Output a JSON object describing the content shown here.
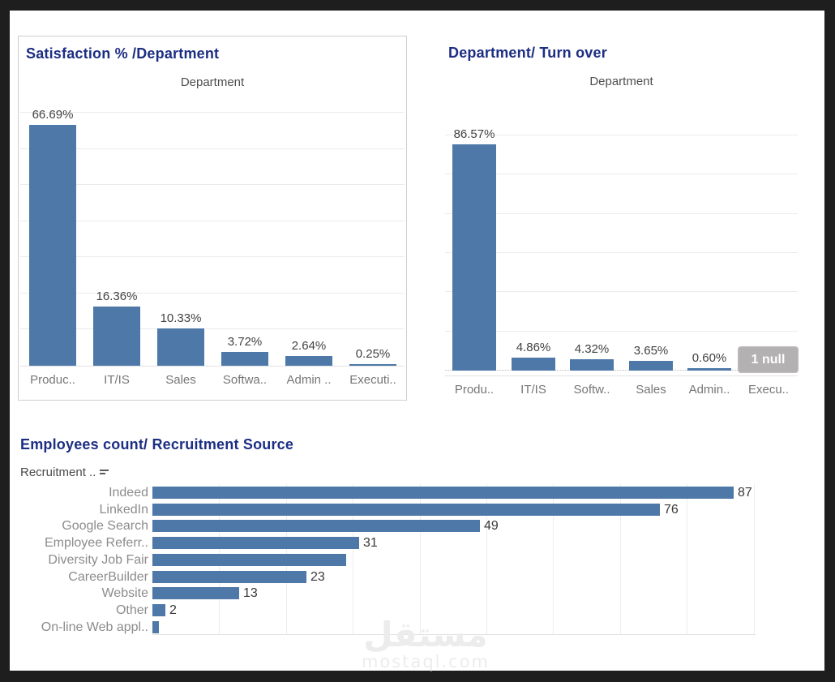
{
  "colors": {
    "bar": "#4d78a7",
    "title": "#1c2e83",
    "frame": "#1e1e1e",
    "null_badge_bg": "#b3b1b1"
  },
  "watermark": {
    "arabic": "مستقل",
    "latin": "mostaql.com"
  },
  "chart_data": [
    {
      "type": "bar",
      "title": "Satisfaction % /Department",
      "xlabel": "Department",
      "ylabel": "",
      "categories": [
        "Produc..",
        "IT/IS",
        "Sales",
        "Softwa..",
        "Admin ..",
        "Executi.."
      ],
      "values": [
        66.69,
        16.36,
        10.33,
        3.72,
        2.64,
        0.25
      ],
      "value_labels": [
        "66.69%",
        "16.36%",
        "10.33%",
        "3.72%",
        "2.64%",
        "0.25%"
      ],
      "ylim": [
        0,
        70
      ],
      "grid": "on",
      "legend": "none"
    },
    {
      "type": "bar",
      "title": "Department/ Turn over",
      "xlabel": "Department",
      "ylabel": "",
      "categories": [
        "Produ..",
        "IT/IS",
        "Softw..",
        "Sales",
        "Admin..",
        "Execu.."
      ],
      "values": [
        86.57,
        4.86,
        4.32,
        3.65,
        0.6,
        null
      ],
      "value_labels": [
        "86.57%",
        "4.86%",
        "4.32%",
        "3.65%",
        "0.60%",
        ""
      ],
      "null_annotation": "1 null",
      "ylim": [
        0,
        93
      ],
      "grid": "on",
      "legend": "none"
    },
    {
      "type": "bar",
      "orientation": "horizontal",
      "title": "Employees count/ Recruitment Source",
      "row_header": "Recruitment ..",
      "categories": [
        "Indeed",
        "LinkedIn",
        "Google Search",
        "Employee Referr..",
        "Diversity Job Fair",
        "CareerBuilder",
        "Website",
        "Other",
        "On-line Web appl.."
      ],
      "values": [
        87,
        76,
        49,
        31,
        29,
        23,
        13,
        2,
        1
      ],
      "value_labels": [
        "87",
        "76",
        "49",
        "31",
        "",
        "23",
        "13",
        "2",
        ""
      ],
      "xlim": [
        0,
        90
      ],
      "grid": "on",
      "legend": "none"
    }
  ]
}
